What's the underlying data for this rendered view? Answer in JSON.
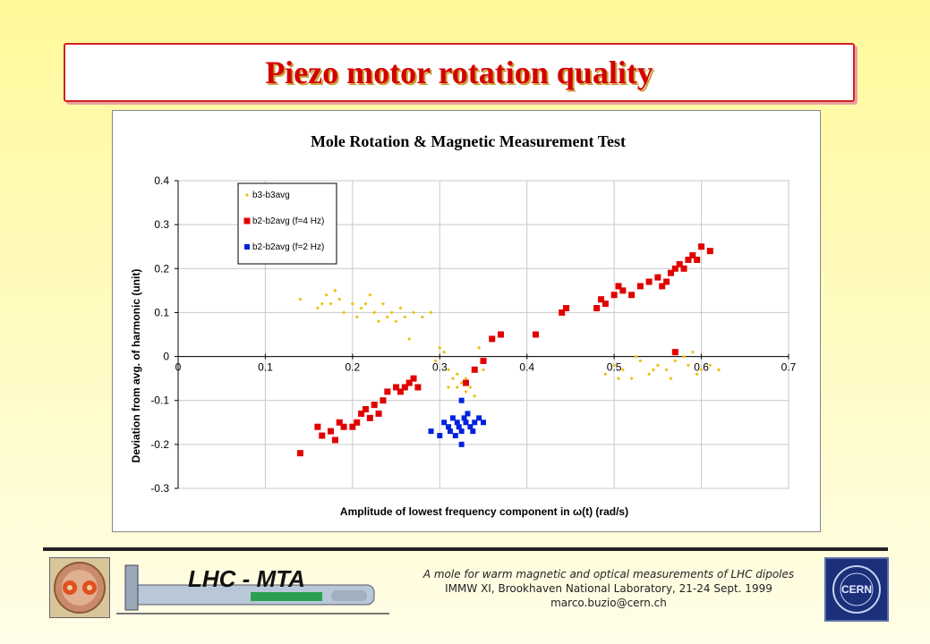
{
  "slide": {
    "title": "Piezo motor rotation quality"
  },
  "footer": {
    "line1": "A mole for warm magnetic and optical measurements  of LHC dipoles",
    "line2": "IMMW XI, Brookhaven National Laboratory, 21-24 Sept. 1999",
    "line3": "marco.buzio@cern.ch",
    "logo_text": "LHC - MTA",
    "cern_text": "CERN"
  },
  "chart_data": {
    "type": "scatter",
    "title": "Mole Rotation & Magnetic Measurement Test",
    "xlabel": "Amplitude of lowest frequency component in ω(t) (rad/s)",
    "ylabel": "Deviation from avg. of harmonic (unit)",
    "xlim": [
      0,
      0.7
    ],
    "ylim": [
      -0.3,
      0.4
    ],
    "xticks": [
      "0",
      "0.1",
      "0.2",
      "0.3",
      "0.4",
      "0.5",
      "0.6",
      "0.7"
    ],
    "yticks": [
      "0.4",
      "0.3",
      "0.2",
      "0.1",
      "0",
      "-0.1",
      "-0.2",
      "-0.3"
    ],
    "grid": true,
    "legend_position": "top-left",
    "series": [
      {
        "name": "b3-b3avg",
        "color": "#e8c000",
        "marker": "diamond-small",
        "points": [
          [
            0.14,
            0.13
          ],
          [
            0.16,
            0.11
          ],
          [
            0.165,
            0.12
          ],
          [
            0.17,
            0.14
          ],
          [
            0.175,
            0.12
          ],
          [
            0.18,
            0.15
          ],
          [
            0.185,
            0.13
          ],
          [
            0.19,
            0.1
          ],
          [
            0.2,
            0.12
          ],
          [
            0.205,
            0.09
          ],
          [
            0.21,
            0.11
          ],
          [
            0.215,
            0.12
          ],
          [
            0.22,
            0.14
          ],
          [
            0.225,
            0.1
          ],
          [
            0.23,
            0.08
          ],
          [
            0.235,
            0.12
          ],
          [
            0.24,
            0.09
          ],
          [
            0.245,
            0.1
          ],
          [
            0.25,
            0.08
          ],
          [
            0.255,
            0.11
          ],
          [
            0.26,
            0.09
          ],
          [
            0.265,
            0.04
          ],
          [
            0.27,
            0.1
          ],
          [
            0.28,
            0.09
          ],
          [
            0.29,
            0.1
          ],
          [
            0.295,
            -0.01
          ],
          [
            0.3,
            0.02
          ],
          [
            0.305,
            0.01
          ],
          [
            0.31,
            -0.03
          ],
          [
            0.315,
            -0.05
          ],
          [
            0.32,
            -0.07
          ],
          [
            0.325,
            -0.06
          ],
          [
            0.33,
            -0.08
          ],
          [
            0.335,
            -0.07
          ],
          [
            0.34,
            -0.09
          ],
          [
            0.345,
            0.02
          ],
          [
            0.35,
            -0.03
          ],
          [
            0.32,
            -0.04
          ],
          [
            0.33,
            -0.05
          ],
          [
            0.31,
            -0.07
          ],
          [
            0.49,
            -0.04
          ],
          [
            0.5,
            -0.02
          ],
          [
            0.51,
            -0.03
          ],
          [
            0.52,
            -0.05
          ],
          [
            0.53,
            -0.01
          ],
          [
            0.54,
            -0.04
          ],
          [
            0.55,
            -0.02
          ],
          [
            0.56,
            -0.03
          ],
          [
            0.57,
            -0.01
          ],
          [
            0.58,
            0.0
          ],
          [
            0.59,
            0.01
          ],
          [
            0.6,
            -0.03
          ],
          [
            0.61,
            -0.02
          ],
          [
            0.505,
            -0.05
          ],
          [
            0.525,
            0.0
          ],
          [
            0.545,
            -0.03
          ],
          [
            0.565,
            -0.05
          ],
          [
            0.585,
            -0.02
          ],
          [
            0.595,
            -0.04
          ],
          [
            0.62,
            -0.03
          ]
        ]
      },
      {
        "name": "b2-b2avg (f=4 Hz)",
        "color": "#e00000",
        "marker": "square",
        "points": [
          [
            0.14,
            -0.22
          ],
          [
            0.16,
            -0.16
          ],
          [
            0.165,
            -0.18
          ],
          [
            0.175,
            -0.17
          ],
          [
            0.18,
            -0.19
          ],
          [
            0.185,
            -0.15
          ],
          [
            0.19,
            -0.16
          ],
          [
            0.2,
            -0.16
          ],
          [
            0.205,
            -0.15
          ],
          [
            0.21,
            -0.13
          ],
          [
            0.215,
            -0.12
          ],
          [
            0.22,
            -0.14
          ],
          [
            0.225,
            -0.11
          ],
          [
            0.23,
            -0.13
          ],
          [
            0.235,
            -0.1
          ],
          [
            0.24,
            -0.08
          ],
          [
            0.25,
            -0.07
          ],
          [
            0.255,
            -0.08
          ],
          [
            0.26,
            -0.07
          ],
          [
            0.265,
            -0.06
          ],
          [
            0.27,
            -0.05
          ],
          [
            0.275,
            -0.07
          ],
          [
            0.33,
            -0.06
          ],
          [
            0.34,
            -0.03
          ],
          [
            0.35,
            -0.01
          ],
          [
            0.36,
            0.04
          ],
          [
            0.37,
            0.05
          ],
          [
            0.41,
            0.05
          ],
          [
            0.44,
            0.1
          ],
          [
            0.445,
            0.11
          ],
          [
            0.48,
            0.11
          ],
          [
            0.485,
            0.13
          ],
          [
            0.49,
            0.12
          ],
          [
            0.5,
            0.14
          ],
          [
            0.505,
            0.16
          ],
          [
            0.51,
            0.15
          ],
          [
            0.52,
            0.14
          ],
          [
            0.53,
            0.16
          ],
          [
            0.54,
            0.17
          ],
          [
            0.55,
            0.18
          ],
          [
            0.555,
            0.16
          ],
          [
            0.56,
            0.17
          ],
          [
            0.565,
            0.19
          ],
          [
            0.57,
            0.2
          ],
          [
            0.575,
            0.21
          ],
          [
            0.58,
            0.2
          ],
          [
            0.585,
            0.22
          ],
          [
            0.59,
            0.23
          ],
          [
            0.595,
            0.22
          ],
          [
            0.6,
            0.25
          ],
          [
            0.61,
            0.24
          ],
          [
            0.57,
            0.01
          ]
        ]
      },
      {
        "name": "b2-b2avg (f=2 Hz)",
        "color": "#0022dd",
        "marker": "square-small",
        "points": [
          [
            0.29,
            -0.17
          ],
          [
            0.3,
            -0.18
          ],
          [
            0.305,
            -0.15
          ],
          [
            0.31,
            -0.16
          ],
          [
            0.315,
            -0.14
          ],
          [
            0.32,
            -0.15
          ],
          [
            0.322,
            -0.16
          ],
          [
            0.325,
            -0.17
          ],
          [
            0.33,
            -0.15
          ],
          [
            0.335,
            -0.16
          ],
          [
            0.34,
            -0.15
          ],
          [
            0.345,
            -0.14
          ],
          [
            0.35,
            -0.15
          ],
          [
            0.318,
            -0.18
          ],
          [
            0.328,
            -0.14
          ],
          [
            0.338,
            -0.17
          ],
          [
            0.312,
            -0.17
          ],
          [
            0.325,
            -0.2
          ],
          [
            0.325,
            -0.1
          ],
          [
            0.332,
            -0.13
          ]
        ]
      }
    ]
  }
}
